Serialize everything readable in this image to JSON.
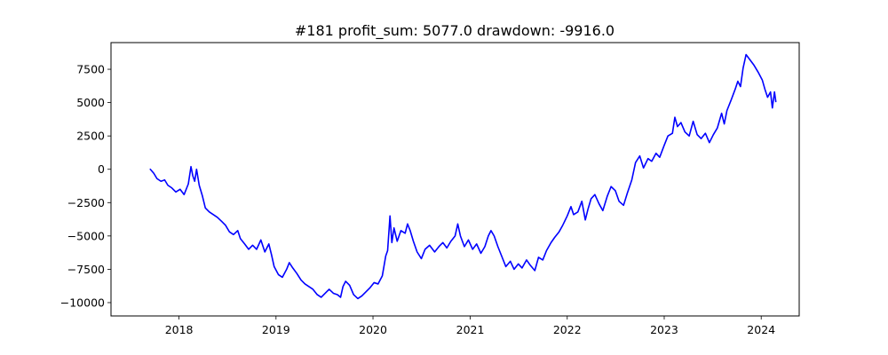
{
  "chart_data": {
    "type": "line",
    "title": "#181   profit_sum: 5077.0 drawdown: -9916.0",
    "xlabel": "",
    "ylabel": "",
    "x_axis": "date",
    "xlim": [
      "2017-04-20",
      "2024-05-23"
    ],
    "ylim": [
      -11000,
      9500
    ],
    "grid": false,
    "x_ticks": [
      {
        "date": "2018-01-01",
        "label": "2018"
      },
      {
        "date": "2019-01-01",
        "label": "2019"
      },
      {
        "date": "2020-01-01",
        "label": "2020"
      },
      {
        "date": "2021-01-01",
        "label": "2021"
      },
      {
        "date": "2022-01-01",
        "label": "2022"
      },
      {
        "date": "2023-01-01",
        "label": "2023"
      },
      {
        "date": "2024-01-01",
        "label": "2024"
      }
    ],
    "y_ticks": [
      {
        "value": 7500,
        "label": "7500"
      },
      {
        "value": 5000,
        "label": "5000"
      },
      {
        "value": 2500,
        "label": "2500"
      },
      {
        "value": 0,
        "label": "0"
      },
      {
        "value": -2500,
        "label": "−2500"
      },
      {
        "value": -5000,
        "label": "−5000"
      },
      {
        "value": -7500,
        "label": "−7500"
      },
      {
        "value": -10000,
        "label": "−10000"
      }
    ],
    "series": [
      {
        "color": "#0000ff",
        "points": [
          [
            "2017-09-15",
            0
          ],
          [
            "2017-09-28",
            -300
          ],
          [
            "2017-10-10",
            -700
          ],
          [
            "2017-10-25",
            -900
          ],
          [
            "2017-11-08",
            -800
          ],
          [
            "2017-11-20",
            -1200
          ],
          [
            "2017-12-05",
            -1400
          ],
          [
            "2017-12-20",
            -1700
          ],
          [
            "2018-01-05",
            -1500
          ],
          [
            "2018-01-20",
            -1900
          ],
          [
            "2018-02-05",
            -1100
          ],
          [
            "2018-02-15",
            200
          ],
          [
            "2018-02-22",
            -500
          ],
          [
            "2018-03-01",
            -900
          ],
          [
            "2018-03-08",
            0
          ],
          [
            "2018-03-18",
            -1200
          ],
          [
            "2018-03-30",
            -2000
          ],
          [
            "2018-04-10",
            -2900
          ],
          [
            "2018-04-25",
            -3200
          ],
          [
            "2018-05-10",
            -3400
          ],
          [
            "2018-05-25",
            -3600
          ],
          [
            "2018-06-10",
            -3900
          ],
          [
            "2018-06-25",
            -4200
          ],
          [
            "2018-07-10",
            -4700
          ],
          [
            "2018-07-25",
            -4900
          ],
          [
            "2018-08-10",
            -4600
          ],
          [
            "2018-08-20",
            -5200
          ],
          [
            "2018-09-05",
            -5600
          ],
          [
            "2018-09-20",
            -6000
          ],
          [
            "2018-10-05",
            -5700
          ],
          [
            "2018-10-20",
            -6000
          ],
          [
            "2018-11-05",
            -5300
          ],
          [
            "2018-11-20",
            -6200
          ],
          [
            "2018-12-05",
            -5600
          ],
          [
            "2018-12-15",
            -6400
          ],
          [
            "2018-12-25",
            -7300
          ],
          [
            "2019-01-10",
            -7900
          ],
          [
            "2019-01-25",
            -8100
          ],
          [
            "2019-02-10",
            -7500
          ],
          [
            "2019-02-20",
            -7000
          ],
          [
            "2019-03-05",
            -7400
          ],
          [
            "2019-03-20",
            -7800
          ],
          [
            "2019-04-05",
            -8300
          ],
          [
            "2019-04-20",
            -8600
          ],
          [
            "2019-05-05",
            -8800
          ],
          [
            "2019-05-20",
            -9000
          ],
          [
            "2019-06-05",
            -9400
          ],
          [
            "2019-06-20",
            -9600
          ],
          [
            "2019-07-05",
            -9300
          ],
          [
            "2019-07-20",
            -9000
          ],
          [
            "2019-08-05",
            -9300
          ],
          [
            "2019-08-20",
            -9400
          ],
          [
            "2019-09-01",
            -9600
          ],
          [
            "2019-09-10",
            -8800
          ],
          [
            "2019-09-20",
            -8400
          ],
          [
            "2019-10-05",
            -8700
          ],
          [
            "2019-10-20",
            -9400
          ],
          [
            "2019-11-05",
            -9700
          ],
          [
            "2019-11-20",
            -9500
          ],
          [
            "2019-12-05",
            -9200
          ],
          [
            "2019-12-20",
            -8900
          ],
          [
            "2020-01-05",
            -8500
          ],
          [
            "2020-01-20",
            -8600
          ],
          [
            "2020-02-05",
            -8000
          ],
          [
            "2020-02-18",
            -6500
          ],
          [
            "2020-02-25",
            -6100
          ],
          [
            "2020-03-05",
            -3500
          ],
          [
            "2020-03-12",
            -5500
          ],
          [
            "2020-03-20",
            -4400
          ],
          [
            "2020-04-01",
            -5400
          ],
          [
            "2020-04-15",
            -4600
          ],
          [
            "2020-05-01",
            -4800
          ],
          [
            "2020-05-10",
            -4100
          ],
          [
            "2020-05-20",
            -4600
          ],
          [
            "2020-06-01",
            -5400
          ],
          [
            "2020-06-15",
            -6200
          ],
          [
            "2020-07-01",
            -6700
          ],
          [
            "2020-07-15",
            -6000
          ],
          [
            "2020-08-01",
            -5700
          ],
          [
            "2020-08-20",
            -6200
          ],
          [
            "2020-09-05",
            -5800
          ],
          [
            "2020-09-20",
            -5500
          ],
          [
            "2020-10-05",
            -5900
          ],
          [
            "2020-10-20",
            -5400
          ],
          [
            "2020-11-05",
            -5000
          ],
          [
            "2020-11-15",
            -4100
          ],
          [
            "2020-11-25",
            -5000
          ],
          [
            "2020-12-10",
            -5800
          ],
          [
            "2020-12-25",
            -5300
          ],
          [
            "2021-01-10",
            -6000
          ],
          [
            "2021-01-25",
            -5600
          ],
          [
            "2021-02-10",
            -6300
          ],
          [
            "2021-02-25",
            -5800
          ],
          [
            "2021-03-10",
            -5000
          ],
          [
            "2021-03-20",
            -4600
          ],
          [
            "2021-04-01",
            -5000
          ],
          [
            "2021-04-15",
            -5800
          ],
          [
            "2021-05-01",
            -6600
          ],
          [
            "2021-05-15",
            -7300
          ],
          [
            "2021-06-01",
            -6900
          ],
          [
            "2021-06-15",
            -7500
          ],
          [
            "2021-07-01",
            -7100
          ],
          [
            "2021-07-15",
            -7400
          ],
          [
            "2021-08-01",
            -6800
          ],
          [
            "2021-08-15",
            -7200
          ],
          [
            "2021-09-01",
            -7600
          ],
          [
            "2021-09-15",
            -6600
          ],
          [
            "2021-10-01",
            -6800
          ],
          [
            "2021-10-15",
            -6100
          ],
          [
            "2021-11-01",
            -5500
          ],
          [
            "2021-11-15",
            -5100
          ],
          [
            "2021-12-01",
            -4700
          ],
          [
            "2021-12-15",
            -4200
          ],
          [
            "2022-01-01",
            -3500
          ],
          [
            "2022-01-15",
            -2800
          ],
          [
            "2022-01-25",
            -3400
          ],
          [
            "2022-02-10",
            -3200
          ],
          [
            "2022-02-25",
            -2400
          ],
          [
            "2022-03-10",
            -3800
          ],
          [
            "2022-03-20",
            -3000
          ],
          [
            "2022-04-01",
            -2200
          ],
          [
            "2022-04-15",
            -1900
          ],
          [
            "2022-05-01",
            -2600
          ],
          [
            "2022-05-15",
            -3100
          ],
          [
            "2022-06-01",
            -2000
          ],
          [
            "2022-06-15",
            -1300
          ],
          [
            "2022-07-01",
            -1600
          ],
          [
            "2022-07-15",
            -2400
          ],
          [
            "2022-08-01",
            -2700
          ],
          [
            "2022-08-15",
            -1800
          ],
          [
            "2022-09-01",
            -800
          ],
          [
            "2022-09-15",
            500
          ],
          [
            "2022-10-01",
            1000
          ],
          [
            "2022-10-15",
            100
          ],
          [
            "2022-11-01",
            800
          ],
          [
            "2022-11-15",
            600
          ],
          [
            "2022-12-01",
            1200
          ],
          [
            "2022-12-15",
            900
          ],
          [
            "2023-01-01",
            1800
          ],
          [
            "2023-01-15",
            2500
          ],
          [
            "2023-02-01",
            2700
          ],
          [
            "2023-02-10",
            3900
          ],
          [
            "2023-02-20",
            3200
          ],
          [
            "2023-03-05",
            3500
          ],
          [
            "2023-03-20",
            2800
          ],
          [
            "2023-04-05",
            2500
          ],
          [
            "2023-04-20",
            3600
          ],
          [
            "2023-05-05",
            2600
          ],
          [
            "2023-05-20",
            2300
          ],
          [
            "2023-06-05",
            2700
          ],
          [
            "2023-06-20",
            2000
          ],
          [
            "2023-07-05",
            2600
          ],
          [
            "2023-07-20",
            3100
          ],
          [
            "2023-08-05",
            4200
          ],
          [
            "2023-08-15",
            3400
          ],
          [
            "2023-08-25",
            4400
          ],
          [
            "2023-09-10",
            5200
          ],
          [
            "2023-09-25",
            6000
          ],
          [
            "2023-10-05",
            6600
          ],
          [
            "2023-10-15",
            6200
          ],
          [
            "2023-10-25",
            7600
          ],
          [
            "2023-11-05",
            8600
          ],
          [
            "2023-11-20",
            8200
          ],
          [
            "2023-12-05",
            7800
          ],
          [
            "2023-12-20",
            7300
          ],
          [
            "2024-01-05",
            6700
          ],
          [
            "2024-01-15",
            6000
          ],
          [
            "2024-01-25",
            5400
          ],
          [
            "2024-02-05",
            5800
          ],
          [
            "2024-02-12",
            4600
          ],
          [
            "2024-02-20",
            5800
          ],
          [
            "2024-02-25",
            5077
          ]
        ]
      }
    ]
  }
}
